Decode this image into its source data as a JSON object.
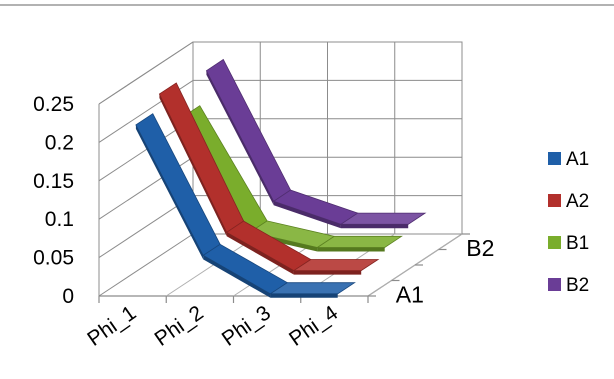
{
  "chart_data": {
    "type": "line",
    "style": "3d",
    "categories": [
      "Phi_1",
      "Phi_2",
      "Phi_3",
      "Phi_4"
    ],
    "depth_labels": [
      "A1",
      "B2"
    ],
    "y_ticks": [
      "0",
      "0.05",
      "0.1",
      "0.15",
      "0.2",
      "0.25"
    ],
    "ylim": [
      0,
      0.25
    ],
    "grid": true,
    "legend_position": "right",
    "series": [
      {
        "name": "A1",
        "color": "#1F5FA8",
        "values": [
          0.22,
          0.05,
          0.0,
          0.0
        ]
      },
      {
        "name": "A2",
        "color": "#B2302C",
        "values": [
          0.24,
          0.06,
          0.01,
          0.01
        ]
      },
      {
        "name": "B1",
        "color": "#7AAD2C",
        "values": [
          0.19,
          0.04,
          0.02,
          0.02
        ]
      },
      {
        "name": "B2",
        "color": "#6A3D96",
        "values": [
          0.23,
          0.06,
          0.03,
          0.03
        ]
      }
    ]
  }
}
